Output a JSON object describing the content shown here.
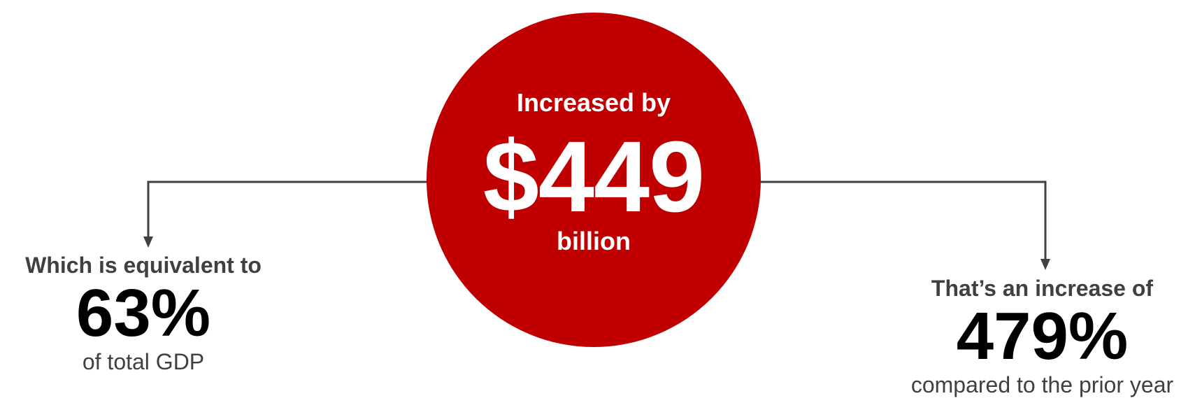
{
  "center": {
    "top_text": "Increased by",
    "amount": "$449",
    "unit": "billion"
  },
  "left": {
    "lead": "Which is equivalent to",
    "value": "63%",
    "tail": "of total GDP"
  },
  "right": {
    "lead": "That’s an increase of",
    "value": "479%",
    "tail": "compared to the prior year"
  },
  "colors": {
    "circle": "#c00000",
    "connector": "#404040",
    "lead_text": "#404040",
    "value_text": "#000000"
  }
}
